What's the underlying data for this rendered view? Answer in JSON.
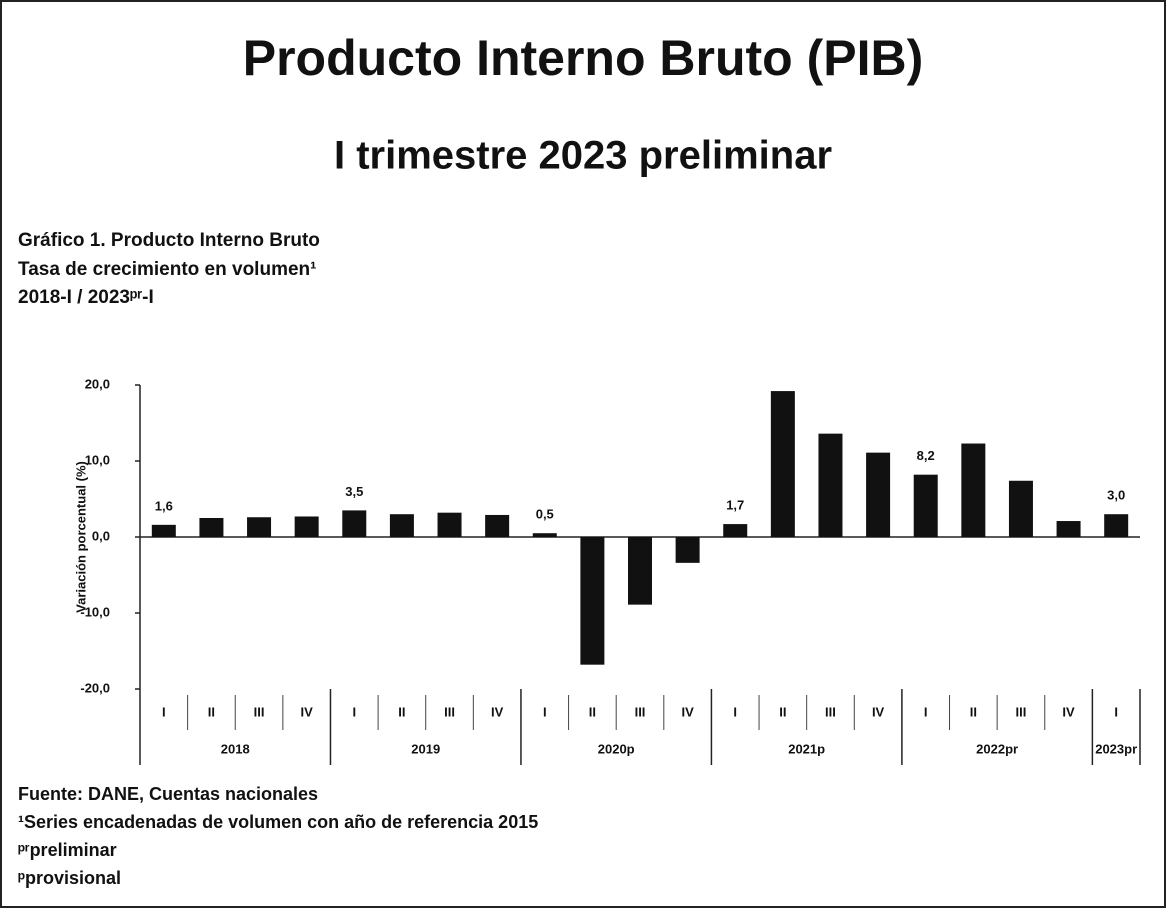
{
  "chart_data": {
    "type": "bar",
    "title": "Producto Interno Bruto (PIB)",
    "subtitle": "I trimestre 2023 preliminar",
    "heading": [
      "Gráfico 1. Producto Interno Bruto",
      "Tasa de crecimiento en volumen¹",
      "2018-I / 2023ᵖʳ-I"
    ],
    "y_label": "Variación porcentual (%)",
    "groups": [
      {
        "label": "2018",
        "categories": [
          "I",
          "II",
          "III",
          "IV"
        ]
      },
      {
        "label": "2019",
        "categories": [
          "I",
          "II",
          "III",
          "IV"
        ]
      },
      {
        "label": "2020p",
        "categories": [
          "I",
          "II",
          "III",
          "IV"
        ]
      },
      {
        "label": "2021p",
        "categories": [
          "I",
          "II",
          "III",
          "IV"
        ]
      },
      {
        "label": "2022pr",
        "categories": [
          "I",
          "II",
          "III",
          "IV"
        ]
      },
      {
        "label": "2023pr",
        "categories": [
          "I"
        ]
      }
    ],
    "values": [
      1.6,
      2.5,
      2.6,
      2.7,
      3.5,
      3.0,
      3.2,
      2.9,
      0.5,
      -16.8,
      -8.9,
      -3.4,
      1.7,
      19.2,
      13.6,
      11.1,
      8.2,
      12.3,
      7.4,
      2.1,
      3.0
    ],
    "value_labels": [
      "1,6",
      null,
      null,
      null,
      "3,5",
      null,
      null,
      null,
      "0,5",
      null,
      null,
      null,
      "1,7",
      null,
      null,
      null,
      "8,2",
      null,
      null,
      null,
      "3,0"
    ],
    "color": "#111111",
    "ylim": [
      -20,
      20
    ],
    "yticks": [
      {
        "value": -20,
        "label": "-20,0"
      },
      {
        "value": -10,
        "label": "-10,0"
      },
      {
        "value": 0,
        "label": "0,0"
      },
      {
        "value": 10,
        "label": "10,0"
      },
      {
        "value": 20,
        "label": "20,0"
      }
    ],
    "grid": false,
    "notes": [
      "Fuente: DANE, Cuentas nacionales",
      "¹Series encadenadas de volumen con año de referencia 2015",
      "ᵖʳpreliminar",
      "ᵖprovisional"
    ]
  }
}
